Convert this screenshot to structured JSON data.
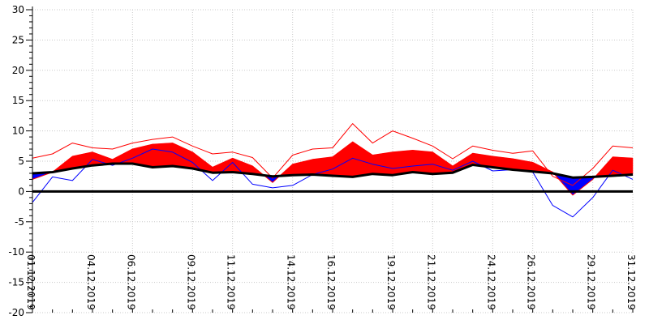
{
  "chart_data": {
    "type": "area",
    "title": "",
    "xlabel": "",
    "ylabel": "",
    "ylim": [
      -20,
      30
    ],
    "y_ticks": [
      30,
      25,
      20,
      15,
      10,
      5,
      0,
      -5,
      -10,
      -15,
      -20
    ],
    "x_tick_labels": [
      {
        "day": 1,
        "label": "01.12.2019"
      },
      {
        "day": 4,
        "label": "04.12.2019"
      },
      {
        "day": 6,
        "label": "06.12.2019"
      },
      {
        "day": 9,
        "label": "09.12.2019"
      },
      {
        "day": 11,
        "label": "11.12.2019"
      },
      {
        "day": 14,
        "label": "14.12.2019"
      },
      {
        "day": 16,
        "label": "16.12.2019"
      },
      {
        "day": 19,
        "label": "19.12.2019"
      },
      {
        "day": 21,
        "label": "21.12.2019"
      },
      {
        "day": 24,
        "label": "24.12.2019"
      },
      {
        "day": 26,
        "label": "26.12.2019"
      },
      {
        "day": 29,
        "label": "29.12.2019"
      },
      {
        "day": 31,
        "label": "31.12.2019"
      }
    ],
    "x": [
      1,
      2,
      3,
      4,
      5,
      6,
      7,
      8,
      9,
      10,
      11,
      12,
      13,
      14,
      15,
      16,
      17,
      18,
      19,
      20,
      21,
      22,
      23,
      24,
      25,
      26,
      27,
      28,
      29,
      30,
      31
    ],
    "grid": true,
    "legend": "none",
    "series": [
      {
        "role": "max",
        "color": "#ff0000",
        "values": [
          5.5,
          6.2,
          8.0,
          7.2,
          7.0,
          8.0,
          8.6,
          9.0,
          7.5,
          6.2,
          6.5,
          5.6,
          2.2,
          6.0,
          7.0,
          7.2,
          11.2,
          8.0,
          10.0,
          8.8,
          7.5,
          5.4,
          7.5,
          6.8,
          6.3,
          6.7,
          2.5,
          1.0,
          3.8,
          7.5,
          7.2
        ]
      },
      {
        "role": "mean",
        "color": "#ff0000",
        "fill_above_color": "#ff0000",
        "fill_below_color": "#0000ff",
        "values": [
          2.0,
          3.2,
          5.8,
          6.5,
          5.3,
          7.0,
          7.8,
          8.0,
          6.5,
          4.0,
          5.5,
          4.2,
          1.5,
          4.5,
          5.3,
          5.7,
          8.2,
          6.0,
          6.5,
          6.8,
          6.5,
          4.2,
          6.3,
          5.8,
          5.4,
          4.8,
          3.2,
          -0.6,
          2.0,
          5.7,
          5.5
        ]
      },
      {
        "role": "min",
        "color": "#0000ff",
        "values": [
          -1.8,
          2.4,
          1.8,
          5.3,
          4.3,
          5.5,
          7.0,
          6.5,
          4.8,
          1.8,
          4.8,
          1.2,
          0.6,
          1.0,
          2.8,
          3.7,
          5.5,
          4.5,
          3.8,
          4.2,
          4.5,
          3.5,
          5.0,
          3.4,
          3.6,
          3.2,
          -2.3,
          -4.2,
          -1.0,
          3.5,
          2.0
        ]
      },
      {
        "role": "normal",
        "color": "#000000",
        "values": [
          3.0,
          3.2,
          3.8,
          4.3,
          4.6,
          4.6,
          4.0,
          4.2,
          3.8,
          3.1,
          3.2,
          2.9,
          2.5,
          2.7,
          2.8,
          2.6,
          2.4,
          2.9,
          2.7,
          3.2,
          2.9,
          3.1,
          4.4,
          4.0,
          3.6,
          3.3,
          3.0,
          2.3,
          2.4,
          2.6,
          2.8
        ]
      }
    ]
  }
}
